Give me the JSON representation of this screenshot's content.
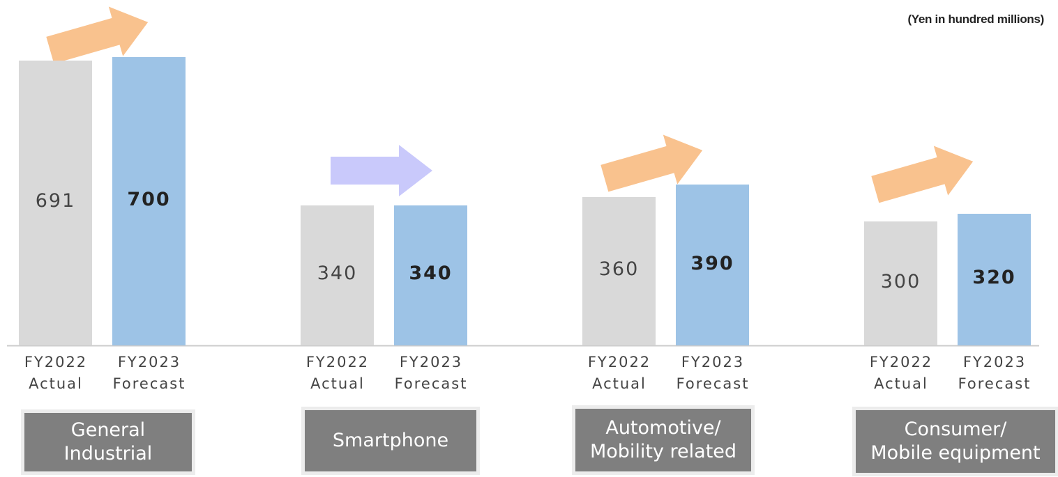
{
  "chart_data": {
    "type": "bar",
    "unit_note": "(Yen in hundred millions)",
    "categories": [
      "General\nIndustrial",
      "Smartphone",
      "Automotive/\nMobility related",
      "Consumer/\nMobile equipment"
    ],
    "series": [
      {
        "name": "FY2022\nActual",
        "color": "#d9d9d9",
        "values": [
          691,
          340,
          360,
          300
        ]
      },
      {
        "name": "FY2023\nForecast",
        "color": "#9dc3e6",
        "values": [
          700,
          340,
          390,
          320
        ]
      }
    ]
  }
}
